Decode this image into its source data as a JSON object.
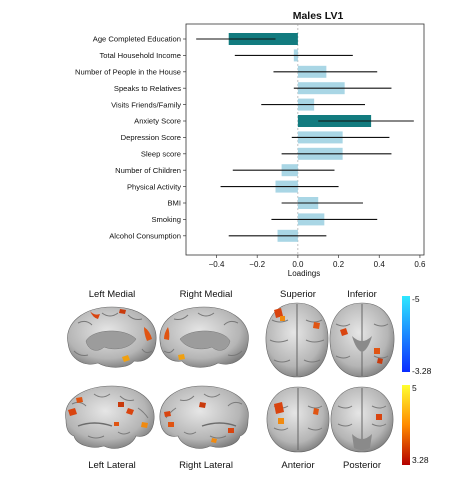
{
  "chart_data": {
    "type": "bar",
    "title": "Males LV1",
    "xlabel": "Loadings",
    "ylabel": "",
    "xlim": [
      -0.55,
      0.62
    ],
    "xticks": [
      -0.4,
      -0.2,
      0.0,
      0.2,
      0.4,
      0.6
    ],
    "xtick_labels": [
      "−0.4",
      "−0.2",
      "0.0",
      "0.2",
      "0.4",
      "0.6"
    ],
    "orientation": "horizontal",
    "grid": false,
    "categories": [
      "Age Completed Education",
      "Total Household Income",
      "Number of People in the House",
      "Speaks to Relatives",
      "Visits Friends/Family",
      "Anxiety Score",
      "Depression Score",
      "Sleep score",
      "Number of Children",
      "Physical Activity",
      "BMI",
      "Smoking",
      "Alcohol Consumption"
    ],
    "values": [
      -0.34,
      -0.02,
      0.14,
      0.23,
      0.08,
      0.36,
      0.22,
      0.22,
      -0.08,
      -0.11,
      0.1,
      0.13,
      -0.1
    ],
    "ci_low": [
      -0.5,
      -0.31,
      -0.12,
      -0.02,
      -0.18,
      0.1,
      -0.03,
      -0.08,
      -0.32,
      -0.38,
      -0.08,
      -0.13,
      -0.34
    ],
    "ci_high": [
      -0.11,
      0.27,
      0.39,
      0.46,
      0.33,
      0.57,
      0.45,
      0.46,
      0.18,
      0.2,
      0.32,
      0.39,
      0.14
    ],
    "significant": [
      true,
      false,
      false,
      false,
      false,
      true,
      false,
      false,
      false,
      false,
      false,
      false,
      false
    ],
    "colors": {
      "significant": "#127b7f",
      "nonsignificant": "#a9d6e5",
      "errorbar": "#111111"
    }
  },
  "brain_panel": {
    "top_labels": [
      "Left Medial",
      "Right Medial",
      "Superior",
      "Inferior"
    ],
    "bottom_labels": [
      "Left Lateral",
      "Right Lateral",
      "Anterior",
      "Posterior"
    ],
    "colorbar_negative": {
      "top_label": "-5",
      "bottom_label": "-3.28",
      "colors": [
        "#2fe8ff",
        "#0a2cff"
      ]
    },
    "colorbar_positive": {
      "top_label": "5",
      "bottom_label": "3.28",
      "colors": [
        "#ffff30",
        "#b40000"
      ]
    },
    "brain_colors": {
      "cortex_light": "#d8d8d8",
      "cortex_dark": "#6f6f6f",
      "activation": "#e04a12"
    }
  }
}
